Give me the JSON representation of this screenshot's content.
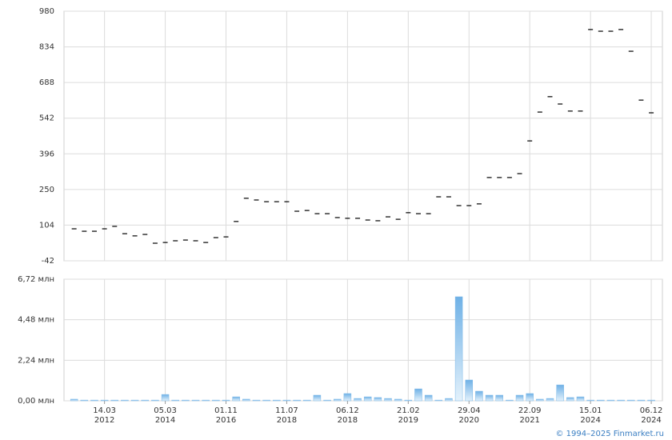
{
  "chart_data": [
    {
      "type": "scatter",
      "marker": "dash",
      "color": "#000000",
      "x": [
        0,
        1,
        2,
        3,
        4,
        5,
        6,
        7,
        8,
        9,
        10,
        11,
        12,
        13,
        14,
        15,
        16,
        17,
        18,
        19,
        20,
        21,
        22,
        23,
        24,
        25,
        26,
        27,
        28,
        29,
        30,
        31,
        32,
        33,
        34,
        35,
        36,
        37,
        38,
        39,
        40,
        41,
        42,
        43,
        44,
        45,
        46,
        47,
        48,
        49,
        50,
        51,
        52,
        53,
        54,
        55,
        56,
        57
      ],
      "values": [
        89,
        79,
        79,
        89,
        99,
        69,
        60,
        66,
        30,
        33,
        40,
        43,
        40,
        33,
        53,
        56,
        119,
        214,
        207,
        200,
        200,
        200,
        161,
        164,
        151,
        151,
        135,
        132,
        132,
        125,
        122,
        138,
        128,
        155,
        151,
        151,
        220,
        220,
        184,
        184,
        191,
        299,
        299,
        299,
        315,
        449,
        567,
        630,
        600,
        571,
        571,
        905,
        898,
        898,
        905,
        816,
        616,
        564
      ],
      "xlim": [
        -1,
        58.1
      ],
      "ylim": [
        -42,
        980
      ],
      "yticks": [
        -42,
        104,
        250,
        396,
        542,
        688,
        834,
        980
      ],
      "grid": true
    },
    {
      "type": "bar",
      "color": "#7db9e8",
      "x": [
        0,
        1,
        2,
        3,
        4,
        5,
        6,
        7,
        8,
        9,
        10,
        11,
        12,
        13,
        14,
        15,
        16,
        17,
        18,
        19,
        20,
        21,
        22,
        23,
        24,
        25,
        26,
        27,
        28,
        29,
        30,
        31,
        32,
        33,
        34,
        35,
        36,
        37,
        38,
        39,
        40,
        41,
        42,
        43,
        44,
        45,
        46,
        47,
        48,
        49,
        50,
        51,
        52,
        53,
        54,
        55,
        56,
        57
      ],
      "values": [
        0.09,
        0.04,
        0.04,
        0.04,
        0.04,
        0.04,
        0.04,
        0.04,
        0.04,
        0.35,
        0.04,
        0.04,
        0.04,
        0.04,
        0.04,
        0.04,
        0.22,
        0.09,
        0.04,
        0.04,
        0.04,
        0.04,
        0.04,
        0.04,
        0.31,
        0.04,
        0.09,
        0.4,
        0.13,
        0.22,
        0.18,
        0.13,
        0.09,
        0.04,
        0.66,
        0.31,
        0.04,
        0.13,
        5.75,
        1.15,
        0.53,
        0.31,
        0.31,
        0.04,
        0.31,
        0.4,
        0.09,
        0.13,
        0.88,
        0.18,
        0.22,
        0.04,
        0.04,
        0.04,
        0.04,
        0.04,
        0.04,
        0.04
      ],
      "xlim": [
        -1,
        58.1
      ],
      "ylim": [
        0,
        6.72
      ],
      "yticks": [
        {
          "value": 0,
          "label": "0,00 млн"
        },
        {
          "value": 2.24,
          "label": "2,24 млн"
        },
        {
          "value": 4.48,
          "label": "4,48 млн"
        },
        {
          "value": 6.72,
          "label": "6,72 млн"
        }
      ],
      "xticks": [
        {
          "value": 3,
          "label": "14.03",
          "year": "2012"
        },
        {
          "value": 9,
          "label": "05.03",
          "year": "2014"
        },
        {
          "value": 15,
          "label": "01.11",
          "year": "2016"
        },
        {
          "value": 21,
          "label": "11.07",
          "year": "2018"
        },
        {
          "value": 27,
          "label": "06.12",
          "year": "2018"
        },
        {
          "value": 33,
          "label": "21.02",
          "year": "2019"
        },
        {
          "value": 39,
          "label": "29.04",
          "year": "2020"
        },
        {
          "value": 45,
          "label": "22.09",
          "year": "2021"
        },
        {
          "value": 51,
          "label": "15.01",
          "year": "2024"
        },
        {
          "value": 57,
          "label": "06.12",
          "year": "2024"
        }
      ],
      "grid": true
    }
  ],
  "footer": "© 1994–2025 Finmarket.ru"
}
